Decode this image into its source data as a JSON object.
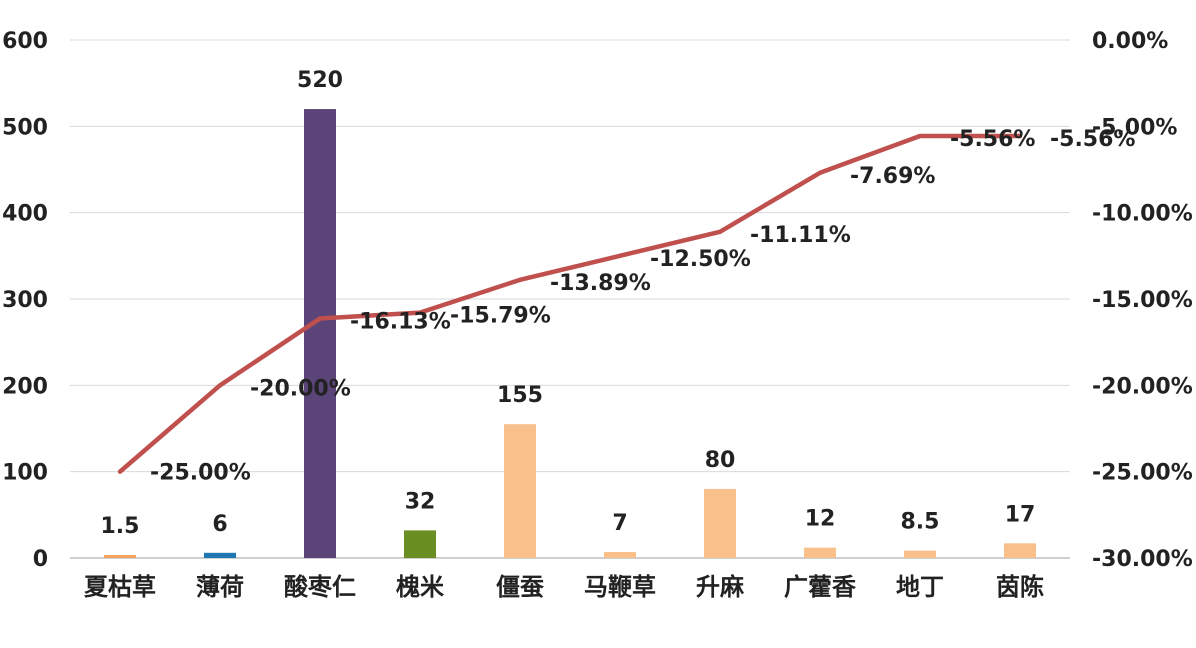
{
  "chart_data": {
    "type": "bar",
    "title": "",
    "xlabel": "",
    "ylabel": "",
    "y2label": "",
    "grid": true,
    "legend": "none",
    "ylim": [
      0,
      600
    ],
    "y_ticks": [
      0,
      100,
      200,
      300,
      400,
      500,
      600
    ],
    "y_tick_labels": [
      "0",
      "100",
      "200",
      "300",
      "400",
      "500",
      "600"
    ],
    "y2lim": [
      -30,
      0
    ],
    "y2_ticks": [
      -30,
      -25,
      -20,
      -15,
      -10,
      -5,
      0
    ],
    "y2_tick_labels": [
      "-30.00%",
      "-25.00%",
      "-20.00%",
      "-15.00%",
      "-10.00%",
      "-5.00%",
      "0.00%"
    ],
    "categories": [
      "夏枯草",
      "薄荷",
      "酸枣仁",
      "槐米",
      "僵蚕",
      "马鞭草",
      "升麻",
      "广藿香",
      "地丁",
      "茵陈"
    ],
    "series": [
      {
        "type": "bar",
        "axis": "left",
        "values": [
          1.5,
          6,
          520,
          32,
          155,
          7,
          80,
          12,
          8.5,
          17
        ],
        "value_labels": [
          "1.5",
          "6",
          "520",
          "32",
          "155",
          "7",
          "80",
          "12",
          "8.5",
          "17"
        ],
        "colors": [
          "#f4a460",
          "#1f77b4",
          "#5b4478",
          "#6b8e23",
          "#f9c08b",
          "#f9c08b",
          "#f9c08b",
          "#f9c08b",
          "#f9c08b",
          "#f9c08b"
        ]
      },
      {
        "type": "line",
        "axis": "right",
        "values": [
          -25.0,
          -20.0,
          -16.13,
          -15.79,
          -13.89,
          -12.5,
          -11.11,
          -7.69,
          -5.56,
          -5.56
        ],
        "value_labels": [
          "-25.00%",
          "-20.00%",
          "-16.13%",
          "-15.79%",
          "-13.89%",
          "-12.50%",
          "-11.11%",
          "-7.69%",
          "-5.56%",
          "-5.56%"
        ],
        "color": "#c0504d"
      }
    ]
  }
}
